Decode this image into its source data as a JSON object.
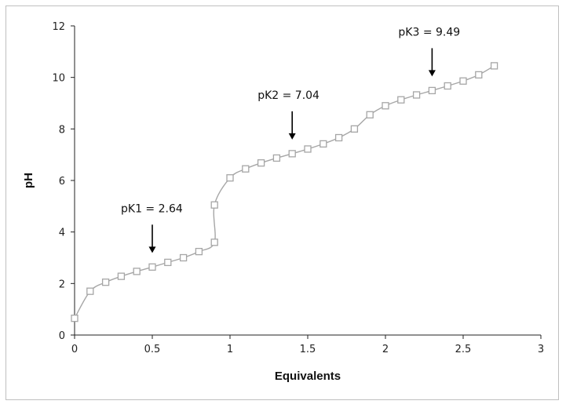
{
  "chart_data": {
    "type": "scatter",
    "xlabel": "Equivalents",
    "ylabel": "pH",
    "xlim": [
      0,
      3
    ],
    "ylim": [
      0,
      12
    ],
    "x_ticks": [
      "0",
      "0.5",
      "1",
      "1.5",
      "2",
      "2.5",
      "3"
    ],
    "y_ticks": [
      "0",
      "2",
      "4",
      "6",
      "8",
      "10",
      "12"
    ],
    "grid": false,
    "legend": "none",
    "line_color": "#a6a6a6",
    "marker": "hollow-square",
    "series": [
      {
        "x": [
          0,
          0.1,
          0.2,
          0.3,
          0.4,
          0.5,
          0.6,
          0.7,
          0.8,
          0.9,
          0.9,
          1.0,
          1.1,
          1.2,
          1.3,
          1.4,
          1.5,
          1.6,
          1.7,
          1.8,
          1.9,
          2.0,
          2.1,
          2.2,
          2.3,
          2.4,
          2.5,
          2.6,
          2.7
        ],
        "y": [
          0.65,
          1.7,
          2.05,
          2.28,
          2.47,
          2.64,
          2.82,
          3.0,
          3.24,
          3.6,
          5.05,
          6.1,
          6.45,
          6.68,
          6.87,
          7.04,
          7.22,
          7.42,
          7.66,
          8.0,
          8.55,
          8.9,
          9.13,
          9.32,
          9.49,
          9.67,
          9.86,
          10.1,
          10.45
        ]
      }
    ],
    "annotations": [
      {
        "text": "pK1 = 2.64",
        "x": 0.5,
        "y": 2.64
      },
      {
        "text": "pK2 = 7.04",
        "x": 1.4,
        "y": 7.04
      },
      {
        "text": "pK3 = 9.49",
        "x": 2.3,
        "y": 9.49
      }
    ]
  }
}
